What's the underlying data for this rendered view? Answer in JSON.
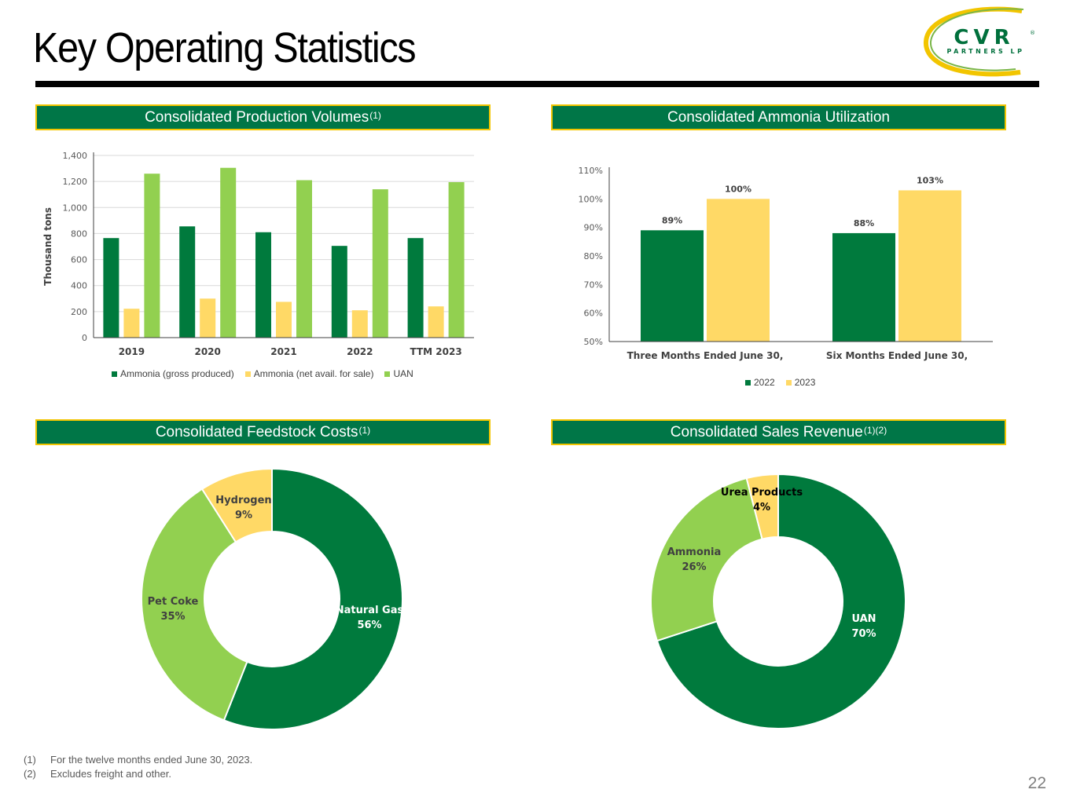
{
  "page": {
    "title": "Key Operating Statistics",
    "page_number": "22"
  },
  "logo": {
    "brand": "CVR",
    "sub": "PARTNERS LP",
    "registered": "®"
  },
  "colors": {
    "dark_green": "#007a3d",
    "light_green": "#92d050",
    "yellow": "#ffd966",
    "header_green": "#007647",
    "header_border": "#f2c500"
  },
  "panels": {
    "production": {
      "title": "Consolidated Production Volumes",
      "note": "(1)"
    },
    "ammonia_util": {
      "title": "Consolidated Ammonia Utilization",
      "note": ""
    },
    "feedstock": {
      "title": "Consolidated Feedstock Costs",
      "note": "(1)"
    },
    "sales": {
      "title": "Consolidated Sales Revenue",
      "note": "(1)(2)"
    }
  },
  "chart_data": [
    {
      "id": "production",
      "type": "bar",
      "title": "Consolidated Production Volumes(1)",
      "xlabel": "",
      "ylabel": "Thousand tons",
      "ylim": [
        0,
        1400
      ],
      "yticks": [
        0,
        200,
        400,
        600,
        800,
        1000,
        1200,
        1400
      ],
      "ytick_labels": [
        "0",
        "200",
        "400",
        "600",
        "800",
        "1,000",
        "1,200",
        "1,400"
      ],
      "grid": true,
      "legend_position": "bottom",
      "categories": [
        "2019",
        "2020",
        "2021",
        "2022",
        "TTM 2023"
      ],
      "series": [
        {
          "name": "Ammonia (gross produced)",
          "color": "#007a3d",
          "values": [
            765,
            855,
            810,
            705,
            765
          ]
        },
        {
          "name": "Ammonia (net avail. for sale)",
          "color": "#ffd966",
          "values": [
            222,
            300,
            275,
            210,
            240
          ]
        },
        {
          "name": "UAN",
          "color": "#92d050",
          "values": [
            1260,
            1305,
            1210,
            1140,
            1195
          ]
        }
      ]
    },
    {
      "id": "ammonia_util",
      "type": "bar",
      "title": "Consolidated Ammonia Utilization",
      "xlabel": "",
      "ylabel": "",
      "ylim": [
        50,
        110
      ],
      "yticks": [
        50,
        60,
        70,
        80,
        90,
        100,
        110
      ],
      "ytick_labels": [
        "50%",
        "60%",
        "70%",
        "80%",
        "90%",
        "100%",
        "110%"
      ],
      "grid": false,
      "legend_position": "bottom",
      "categories": [
        "Three Months Ended June 30,",
        "Six Months Ended June 30,"
      ],
      "series": [
        {
          "name": "2022",
          "color": "#007a3d",
          "values": [
            89,
            88
          ],
          "labels": [
            "89%",
            "88%"
          ]
        },
        {
          "name": "2023",
          "color": "#ffd966",
          "values": [
            100,
            103
          ],
          "labels": [
            "100%",
            "103%"
          ]
        }
      ]
    },
    {
      "id": "feedstock",
      "type": "pie",
      "title": "Consolidated Feedstock Costs(1)",
      "slices": [
        {
          "name": "Natural Gas",
          "value": 56,
          "label": "56%",
          "color": "#007a3d"
        },
        {
          "name": "Pet Coke",
          "value": 35,
          "label": "35%",
          "color": "#92d050"
        },
        {
          "name": "Hydrogen",
          "value": 9,
          "label": "9%",
          "color": "#ffd966"
        }
      ]
    },
    {
      "id": "sales",
      "type": "pie",
      "title": "Consolidated Sales Revenue(1)(2)",
      "slices": [
        {
          "name": "UAN",
          "value": 70,
          "label": "70%",
          "color": "#007a3d"
        },
        {
          "name": "Ammonia",
          "value": 26,
          "label": "26%",
          "color": "#92d050"
        },
        {
          "name": "Urea Products",
          "value": 4,
          "label": "4%",
          "color": "#ffd966"
        }
      ]
    }
  ],
  "footnotes": [
    {
      "mark": "(1)",
      "text": "For the twelve months ended June 30, 2023."
    },
    {
      "mark": "(2)",
      "text": "Excludes freight and other."
    }
  ]
}
